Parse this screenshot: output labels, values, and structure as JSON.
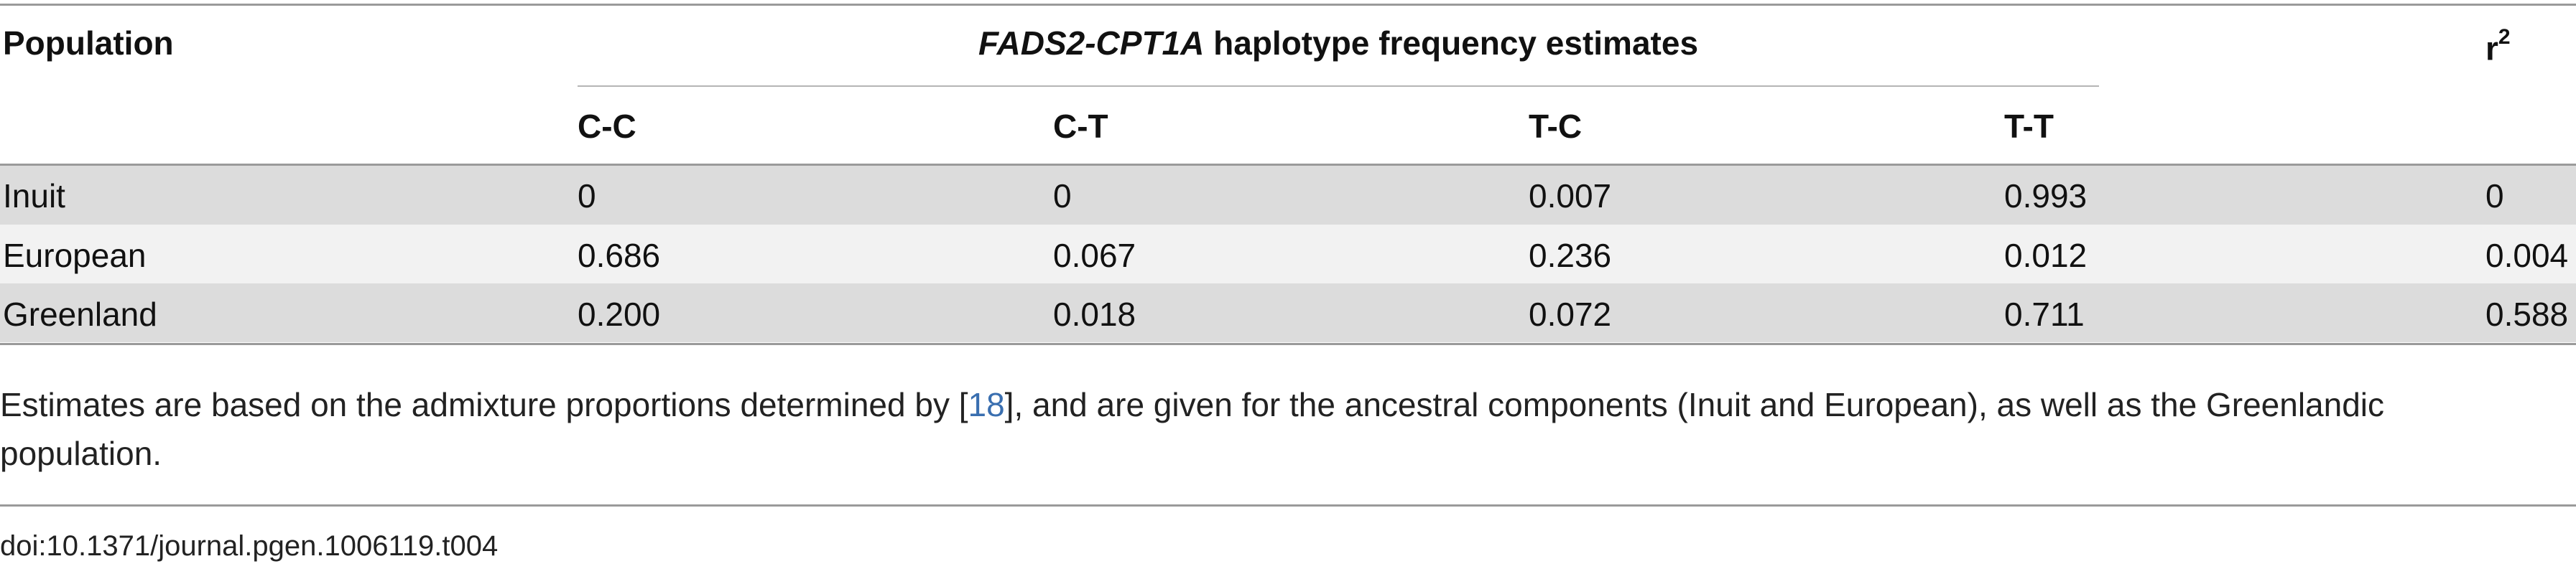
{
  "table": {
    "header": {
      "population": "Population",
      "group_title_gene": "FADS2-CPT1A",
      "group_title_rest": " haplotype frequency estimates",
      "r2_base": "r",
      "r2_sup": "2",
      "columns": [
        "C-C",
        "C-T",
        "T-C",
        "T-T"
      ]
    },
    "rows": [
      {
        "population": "Inuit",
        "cc": "0",
        "ct": "0",
        "tc": "0.007",
        "tt": "0.993",
        "r2": "0"
      },
      {
        "population": "European",
        "cc": "0.686",
        "ct": "0.067",
        "tc": "0.236",
        "tt": "0.012",
        "r2": "0.004"
      },
      {
        "population": "Greenland",
        "cc": "0.200",
        "ct": "0.018",
        "tc": "0.072",
        "tt": "0.711",
        "r2": "0.588"
      }
    ]
  },
  "footnote": {
    "before_ref": "Estimates are based on the admixture proportions determined by [",
    "ref": "18",
    "after_ref": "], and are given for the ancestral components (Inuit and European), as well as the Greenlandic population."
  },
  "doi": "doi:10.1371/journal.pgen.1006119.t004"
}
